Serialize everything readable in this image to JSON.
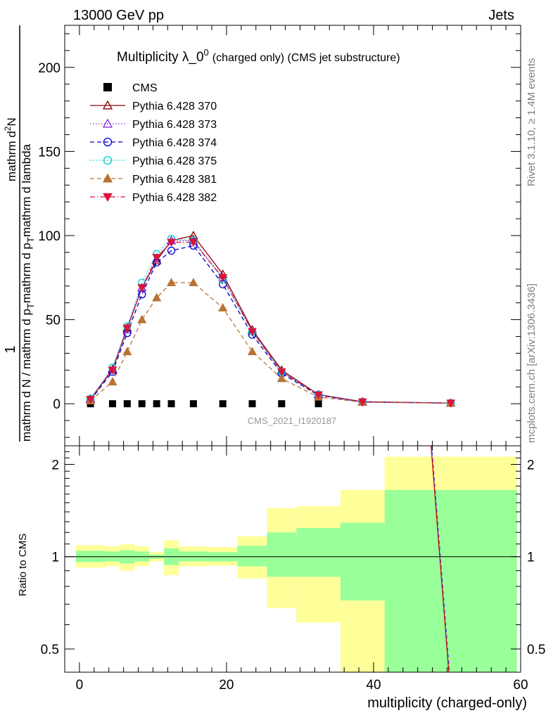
{
  "header": {
    "left": "13000 GeV pp",
    "right": "Jets"
  },
  "side_labels": {
    "rivet": "Rivet 3.1.10, ≥ 1.4M events",
    "mcplots": "mcplots.cern.ch [arXiv:1306.3436]"
  },
  "chart_data": [
    {
      "type": "line",
      "title": "Multiplicity λ_0",
      "title_superscript": "0",
      "title_suffix": "(charged only) (CMS jet substructure)",
      "watermark": "CMS_2021_I1920187",
      "ylabel": {
        "line1_left": "1",
        "line1_right": "mathrm d N / mathrm d p",
        "line1_sub": "T",
        "line1_end": "mathrm d lambda",
        "num_line": "mathrm d",
        "num_sup": "2",
        "num_n": "N",
        "den_a": "mathrm d N / mathrm d p",
        "den_b": "T",
        "den_c": "mathrm d p",
        "den_d": "T",
        "den_e": "mathrm d lambda"
      },
      "ylabel_full": {
        "numerator": "mathrm d²N",
        "frac1_den": "mathrm d p_T mathrm d lambda",
        "outer_num": "1",
        "outer_den": "mathrm d N / mathrm d p_T"
      },
      "xlim": [
        -2,
        60
      ],
      "ylim": [
        -25,
        225
      ],
      "yticks": [
        0,
        50,
        100,
        150,
        200
      ],
      "ytick_labels": [
        "0",
        "50",
        "100",
        "150",
        "200"
      ],
      "x": [
        1.5,
        4.5,
        6.5,
        8.5,
        10.5,
        12.5,
        15.5,
        19.5,
        23.5,
        27.5,
        32.5,
        38.5,
        50.5
      ],
      "series": [
        {
          "name": "CMS",
          "color": "#000000",
          "marker": "square",
          "line": "none",
          "values": [
            0,
            0,
            0,
            0,
            0,
            0,
            0,
            0,
            0,
            0,
            0,
            null,
            null
          ]
        },
        {
          "name": "Pythia 6.428 370",
          "color": "#8b0000",
          "marker": "triangle-open",
          "line": "solid",
          "values": [
            2.8,
            20.5,
            45,
            69,
            85,
            97,
            100,
            77,
            44,
            20,
            5.5,
            1.2,
            0.4
          ]
        },
        {
          "name": "Pythia 6.428 373",
          "color": "#8a2be2",
          "marker": "triangle-open",
          "line": "dotted",
          "values": [
            2.5,
            20,
            44,
            69,
            86,
            97,
            97,
            75,
            43,
            19,
            5.3,
            1.1,
            0.4
          ]
        },
        {
          "name": "Pythia 6.428 374",
          "color": "#0000cd",
          "marker": "circle-open",
          "line": "dashed",
          "values": [
            2.2,
            19,
            42,
            65,
            84,
            91,
            94,
            71,
            41,
            18,
            5,
            1,
            0.4
          ]
        },
        {
          "name": "Pythia 6.428 375",
          "color": "#00ced1",
          "marker": "circle-open",
          "line": "dotted",
          "values": [
            3,
            21.5,
            46,
            72,
            89,
            98,
            97,
            74,
            43,
            19,
            5.5,
            1.2,
            0.4
          ]
        },
        {
          "name": "Pythia 6.428 381",
          "color": "#b87333",
          "marker": "triangle-filled",
          "line": "dashed",
          "values": [
            1.8,
            13,
            31,
            50,
            63,
            72,
            72,
            57,
            31,
            15,
            4,
            0.9,
            0.3
          ]
        },
        {
          "name": "Pythia 6.428 382",
          "color": "#dc143c",
          "marker": "triangle-down-filled",
          "line": "dashdot",
          "values": [
            2.6,
            20,
            45,
            69,
            87,
            96,
            96,
            75,
            43,
            19,
            5.3,
            1.1,
            0.4
          ]
        }
      ]
    },
    {
      "type": "area",
      "ylabel": "Ratio to CMS",
      "xlabel": "multiplicity (charged-only)",
      "xlim": [
        -2,
        60
      ],
      "xticks": [
        0,
        20,
        40,
        60
      ],
      "xtick_labels": [
        "0",
        "20",
        "40",
        "60"
      ],
      "ylim": [
        0.42,
        2.3
      ],
      "scale": "log",
      "yticks": [
        0.5,
        1,
        2
      ],
      "ytick_labels": [
        "0.5",
        "1",
        "2"
      ],
      "bin_edges": [
        -0.5,
        3.5,
        5.5,
        7.5,
        9.5,
        11.5,
        13.5,
        17.5,
        21.5,
        25.5,
        29.5,
        35.5,
        41.5,
        59.5
      ],
      "green_band_low": [
        0.96,
        0.965,
        0.95,
        0.965,
        0.985,
        0.94,
        0.965,
        0.965,
        0.93,
        0.86,
        0.86,
        0.72,
        0.38
      ],
      "green_band_high": [
        1.045,
        1.04,
        1.05,
        1.04,
        1.015,
        1.065,
        1.04,
        1.035,
        1.085,
        1.2,
        1.24,
        1.29,
        1.65
      ],
      "yellow_band_low": [
        0.92,
        0.93,
        0.9,
        0.93,
        0.965,
        0.87,
        0.93,
        0.935,
        0.85,
        0.68,
        0.61,
        0.38,
        0.38
      ],
      "yellow_band_high": [
        1.09,
        1.08,
        1.1,
        1.08,
        1.035,
        1.13,
        1.08,
        1.075,
        1.165,
        1.44,
        1.46,
        1.65,
        2.12
      ],
      "colors": {
        "green": "#99ff99",
        "yellow": "#ffff99",
        "steep_line_red": "#cc0000",
        "steep_line_blue": "#4040ff"
      },
      "steep_line": {
        "x": [
          47.7,
          50.3
        ],
        "y": [
          2.5,
          0.4
        ]
      }
    }
  ]
}
